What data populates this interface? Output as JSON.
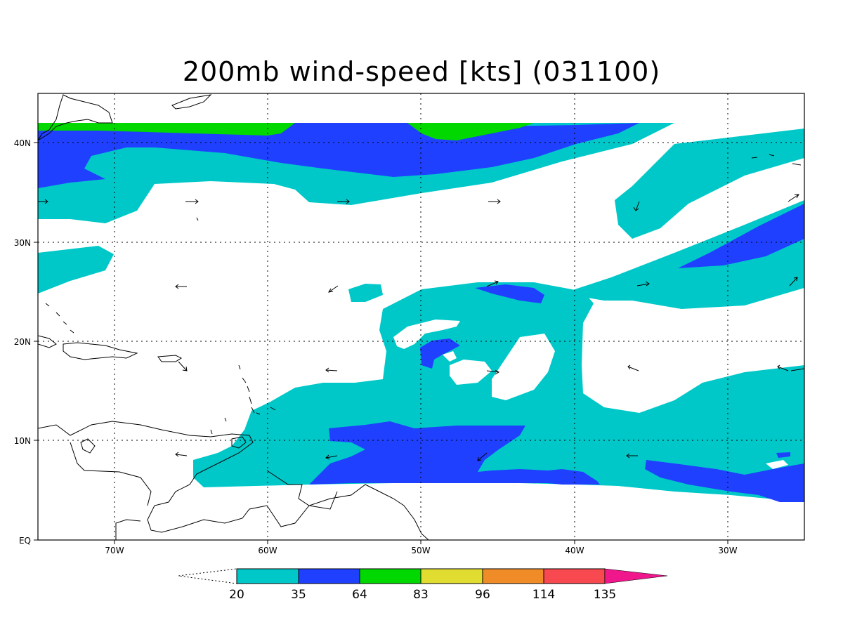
{
  "title": "200mb wind-speed [kts] (031100)",
  "map": {
    "lat_labels": [
      "40N",
      "30N",
      "20N",
      "10N",
      "EQ"
    ],
    "lon_labels": [
      "70W",
      "60W",
      "50W",
      "40W",
      "30W"
    ],
    "lon_range": [
      -75,
      -25
    ],
    "lat_range": [
      0,
      45
    ]
  },
  "colors": {
    "c20": "#00c8c8",
    "c35": "#2040ff",
    "c64": "#00d800",
    "c83": "#e0dc30",
    "c96": "#f08c28",
    "c114": "#f84850",
    "c135": "#f0168c",
    "land": "#000000"
  },
  "colorbar": {
    "labels": [
      "20",
      "35",
      "64",
      "83",
      "96",
      "114",
      "135"
    ]
  }
}
